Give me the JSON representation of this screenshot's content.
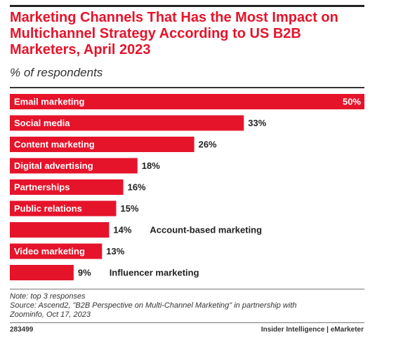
{
  "header": {
    "title": "Marketing Channels That Has the Most Impact on Multichannel Strategy According to US B2B Marketers, April 2023",
    "subtitle": "% of respondents"
  },
  "chart_data": {
    "type": "bar",
    "orientation": "horizontal",
    "title": "Marketing Channels That Has the Most Impact on Multichannel Strategy According to US B2B Marketers, April 2023",
    "subtitle": "% of respondents",
    "categories": [
      "Email marketing",
      "Social media",
      "Content marketing",
      "Digital advertising",
      "Partnerships",
      "Public relations",
      "Account-based marketing",
      "Video marketing",
      "Influencer marketing"
    ],
    "values": [
      50,
      33,
      26,
      18,
      16,
      15,
      14,
      13,
      9
    ],
    "value_labels": [
      "50%",
      "33%",
      "26%",
      "18%",
      "16%",
      "15%",
      "14%",
      "13%",
      "9%"
    ],
    "xlim": [
      0,
      50
    ],
    "bar_color": "#e5142b",
    "grid": false,
    "legend": "none"
  },
  "footer": {
    "note": "Note: top 3 responses",
    "source_line1": "Source: Ascend2, \"B2B Perspective on Multi-Channel Marketing\" in partnership with",
    "source_line2": "Zoominfo, Oct 17, 2023",
    "chart_id": "283499",
    "brand": "Insider Intelligence | eMarketer"
  },
  "colors": {
    "accent": "#e5142b",
    "text": "#222222"
  }
}
